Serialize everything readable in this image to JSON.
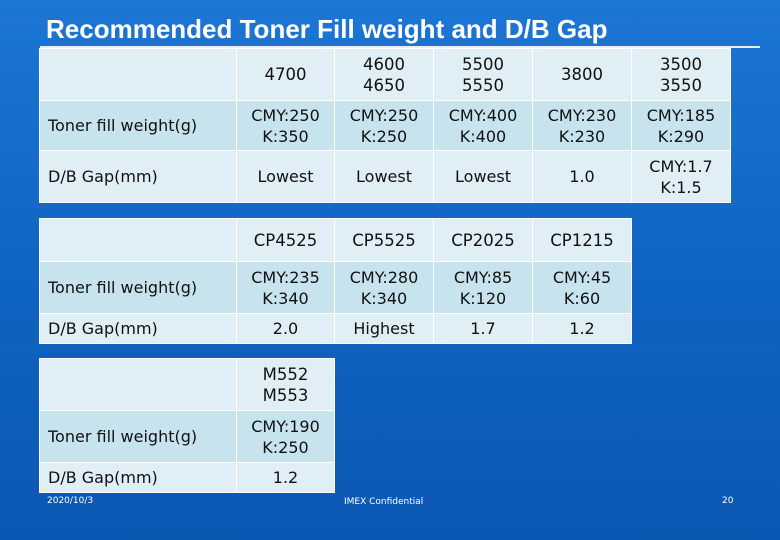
{
  "title": "Recommended Toner Fill weight and D/B Gap",
  "row_labels": {
    "toner": "Toner fill weight(g)",
    "gap": "D/B Gap(mm)"
  },
  "table1": {
    "headers": [
      [
        "4700"
      ],
      [
        "4600",
        "4650"
      ],
      [
        "5500",
        "5550"
      ],
      [
        "3800"
      ],
      [
        "3500",
        "3550"
      ]
    ],
    "toner": [
      [
        "CMY:250",
        "K:350"
      ],
      [
        "CMY:250",
        "K:250"
      ],
      [
        "CMY:400",
        "K:400"
      ],
      [
        "CMY:230",
        "K:230"
      ],
      [
        "CMY:185",
        "K:290"
      ]
    ],
    "gap": [
      [
        "Lowest"
      ],
      [
        "Lowest"
      ],
      [
        "Lowest"
      ],
      [
        "1.0"
      ],
      [
        "CMY:1.7",
        "K:1.5"
      ]
    ]
  },
  "table2": {
    "headers": [
      [
        "CP4525"
      ],
      [
        "CP5525"
      ],
      [
        "CP2025"
      ],
      [
        "CP1215"
      ]
    ],
    "toner": [
      [
        "CMY:235",
        "K:340"
      ],
      [
        "CMY:280",
        "K:340"
      ],
      [
        "CMY:85",
        "K:120"
      ],
      [
        "CMY:45",
        "K:60"
      ]
    ],
    "gap": [
      [
        "2.0"
      ],
      [
        "Highest"
      ],
      [
        "1.7"
      ],
      [
        "1.2"
      ]
    ]
  },
  "table3": {
    "headers": [
      [
        "M552",
        "M553"
      ]
    ],
    "toner": [
      [
        "CMY:190",
        "K:250"
      ]
    ],
    "gap": [
      [
        "1.2"
      ]
    ]
  },
  "footer": {
    "date": "2020/10/3",
    "confidential": "IMEX Confidential",
    "page": "20"
  }
}
